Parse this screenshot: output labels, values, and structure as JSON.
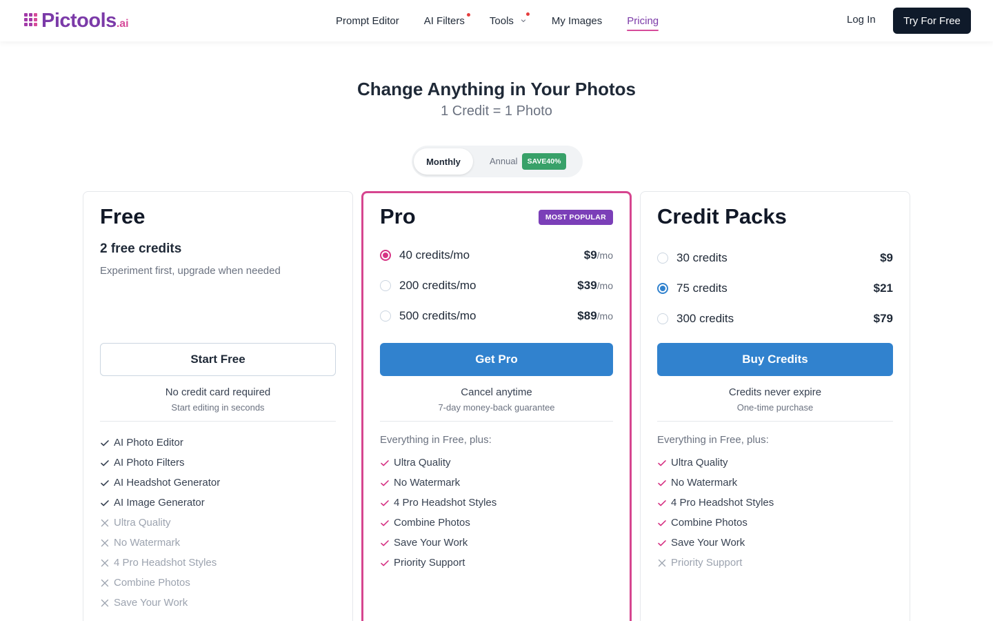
{
  "header": {
    "logo": {
      "name": "Pictools",
      "suffix": ".ai"
    },
    "nav": [
      {
        "label": "Prompt Editor"
      },
      {
        "label": "AI Filters",
        "dot": true
      },
      {
        "label": "Tools",
        "dot": true,
        "dropdown": true
      },
      {
        "label": "My Images"
      },
      {
        "label": "Pricing",
        "active": true
      }
    ],
    "login": "Log In",
    "cta": "Try For Free"
  },
  "hero": {
    "title": "Change Anything in Your Photos",
    "subtitle": "1 Credit = 1 Photo"
  },
  "billing_toggle": {
    "monthly": "Monthly",
    "annual": "Annual",
    "badge": "SAVE40%"
  },
  "plans": [
    {
      "name": "Free",
      "credits": "2 free credits",
      "description": "Experiment first, upgrade when needed",
      "button": "Start Free",
      "note": "No credit card required",
      "subnote": "Start editing in seconds",
      "features": [
        {
          "text": "AI Photo Editor",
          "included": true
        },
        {
          "text": "AI Photo Filters",
          "included": true
        },
        {
          "text": "AI Headshot Generator",
          "included": true
        },
        {
          "text": "AI Image Generator",
          "included": true
        },
        {
          "text": "Ultra Quality",
          "included": false
        },
        {
          "text": "No Watermark",
          "included": false
        },
        {
          "text": "4 Pro Headshot Styles",
          "included": false
        },
        {
          "text": "Combine Photos",
          "included": false
        },
        {
          "text": "Save Your Work",
          "included": false
        }
      ]
    },
    {
      "name": "Pro",
      "badge": "MOST POPULAR",
      "options": [
        {
          "label": "40 credits/mo",
          "price": "$9",
          "period": "/mo",
          "selected": true
        },
        {
          "label": "200 credits/mo",
          "price": "$39",
          "period": "/mo",
          "selected": false
        },
        {
          "label": "500 credits/mo",
          "price": "$89",
          "period": "/mo",
          "selected": false
        }
      ],
      "button": "Get Pro",
      "note": "Cancel anytime",
      "subnote": "7-day money-back guarantee",
      "features_intro": "Everything in Free, plus:",
      "features": [
        {
          "text": "Ultra Quality",
          "included": true
        },
        {
          "text": "No Watermark",
          "included": true
        },
        {
          "text": "4 Pro Headshot Styles",
          "included": true
        },
        {
          "text": "Combine Photos",
          "included": true
        },
        {
          "text": "Save Your Work",
          "included": true
        },
        {
          "text": "Priority Support",
          "included": true
        }
      ]
    },
    {
      "name": "Credit Packs",
      "options": [
        {
          "label": "30 credits",
          "price": "$9",
          "selected": false
        },
        {
          "label": "75 credits",
          "price": "$21",
          "selected": true
        },
        {
          "label": "300 credits",
          "price": "$79",
          "selected": false
        }
      ],
      "button": "Buy Credits",
      "note": "Credits never expire",
      "subnote": "One-time purchase",
      "features_intro": "Everything in Free, plus:",
      "features": [
        {
          "text": "Ultra Quality",
          "included": true
        },
        {
          "text": "No Watermark",
          "included": true
        },
        {
          "text": "4 Pro Headshot Styles",
          "included": true
        },
        {
          "text": "Combine Photos",
          "included": true
        },
        {
          "text": "Save Your Work",
          "included": true
        },
        {
          "text": "Priority Support",
          "included": false
        }
      ]
    }
  ]
}
